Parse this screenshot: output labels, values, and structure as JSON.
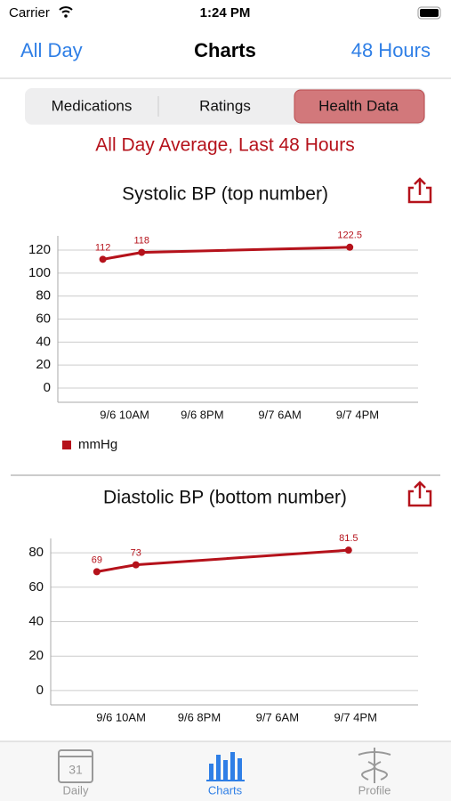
{
  "status_bar": {
    "carrier": "Carrier",
    "time": "1:24 PM"
  },
  "nav": {
    "left": "All Day",
    "title": "Charts",
    "right": "48 Hours"
  },
  "segments": {
    "items": [
      "Medications",
      "Ratings",
      "Health Data"
    ],
    "selected": 2
  },
  "subtitle": "All Day Average, Last 48 Hours",
  "charts": [
    {
      "chart_data": {
        "type": "line",
        "title": "Systolic BP (top number)",
        "x": [
          7.2,
          12.2,
          39.0
        ],
        "series": [
          {
            "name": "mmHg",
            "color": "#b5121b",
            "values": [
              112,
              118,
              122.5
            ]
          }
        ],
        "xlim": [
          1.4,
          47.8
        ],
        "xticks": [
          {
            "value": 10,
            "label": "9/6 10AM"
          },
          {
            "value": 20,
            "label": "9/6 8PM"
          },
          {
            "value": 30,
            "label": "9/7 6AM"
          },
          {
            "value": 40,
            "label": "9/7 4PM"
          }
        ],
        "ylim": [
          -12.4,
          132.4
        ],
        "yticks": [
          0,
          20,
          40,
          60,
          80,
          100,
          120
        ],
        "grid": true
      }
    },
    {
      "chart_data": {
        "type": "line",
        "title": "Diastolic BP (bottom number)",
        "x": [
          6.9,
          11.9,
          39.1
        ],
        "series": [
          {
            "color": "#b5121b",
            "values": [
              69,
              73,
              81.5
            ]
          }
        ],
        "xlim": [
          1.0,
          48.0
        ],
        "xticks": [
          {
            "value": 10,
            "label": "9/6 10AM"
          },
          {
            "value": 20,
            "label": "9/6 8PM"
          },
          {
            "value": 30,
            "label": "9/7 6AM"
          },
          {
            "value": 40,
            "label": "9/7 4PM"
          }
        ],
        "ylim": [
          -8.3,
          88.3
        ],
        "yticks": [
          0,
          20,
          40,
          60,
          80
        ],
        "grid": true
      }
    }
  ],
  "tab_bar": {
    "items": [
      "Daily",
      "Charts",
      "Profile"
    ],
    "selected": 1,
    "calendar_day": "31"
  }
}
